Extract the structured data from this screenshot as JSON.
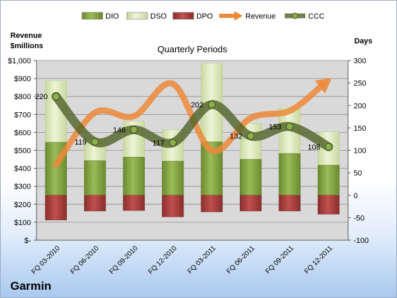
{
  "company": "Garmin",
  "chart_data": {
    "type": "bar",
    "title": "Quarterly Periods",
    "left_axis_label": [
      "Revenue",
      "$millions"
    ],
    "right_axis_label": "Days",
    "categories": [
      "FQ 03-2010",
      "FQ 06-2010",
      "FQ 09-2010",
      "FQ 12-2010",
      "FQ 03-2011",
      "FQ 06-2011",
      "FQ 09-2011",
      "FQ 12-2011"
    ],
    "left_axis": {
      "min": 0,
      "max": 1000,
      "step": 100,
      "ticks": [
        "$-",
        "$100",
        "$200",
        "$300",
        "$400",
        "$500",
        "$600",
        "$700",
        "$800",
        "$900",
        "$1,000"
      ]
    },
    "right_axis": {
      "min": -100,
      "max": 300,
      "step": 50,
      "ticks": [
        "-100",
        "-50",
        "0",
        "50",
        "100",
        "150",
        "200",
        "250",
        "300"
      ]
    },
    "legend_position": "top",
    "series": [
      {
        "name": "DIO",
        "kind": "stacked-bar",
        "axis": "right",
        "color": "#7fa33a",
        "values": [
          118,
          77,
          85,
          76,
          119,
          80,
          93,
          67
        ]
      },
      {
        "name": "DSO",
        "kind": "stacked-bar",
        "axis": "right",
        "color": "#dde9b5",
        "values": [
          137,
          50,
          80,
          70,
          175,
          80,
          101,
          74
        ]
      },
      {
        "name": "DPO",
        "kind": "stacked-bar-negative",
        "axis": "right",
        "color": "#a03c3c",
        "values": [
          -55,
          -35,
          -34,
          -48,
          -37,
          -35,
          -35,
          -42
        ]
      },
      {
        "name": "Revenue",
        "kind": "line",
        "axis": "left",
        "color": "#ec8a3a",
        "values": [
          420,
          710,
          690,
          870,
          500,
          680,
          720,
          890
        ]
      },
      {
        "name": "CCC",
        "kind": "line",
        "axis": "right",
        "color": "#4f6228",
        "values": [
          220,
          119,
          146,
          117,
          202,
          132,
          153,
          108
        ],
        "labels": [
          "220",
          "119",
          "146",
          "117",
          "202",
          "132",
          "153",
          "108"
        ]
      }
    ]
  }
}
